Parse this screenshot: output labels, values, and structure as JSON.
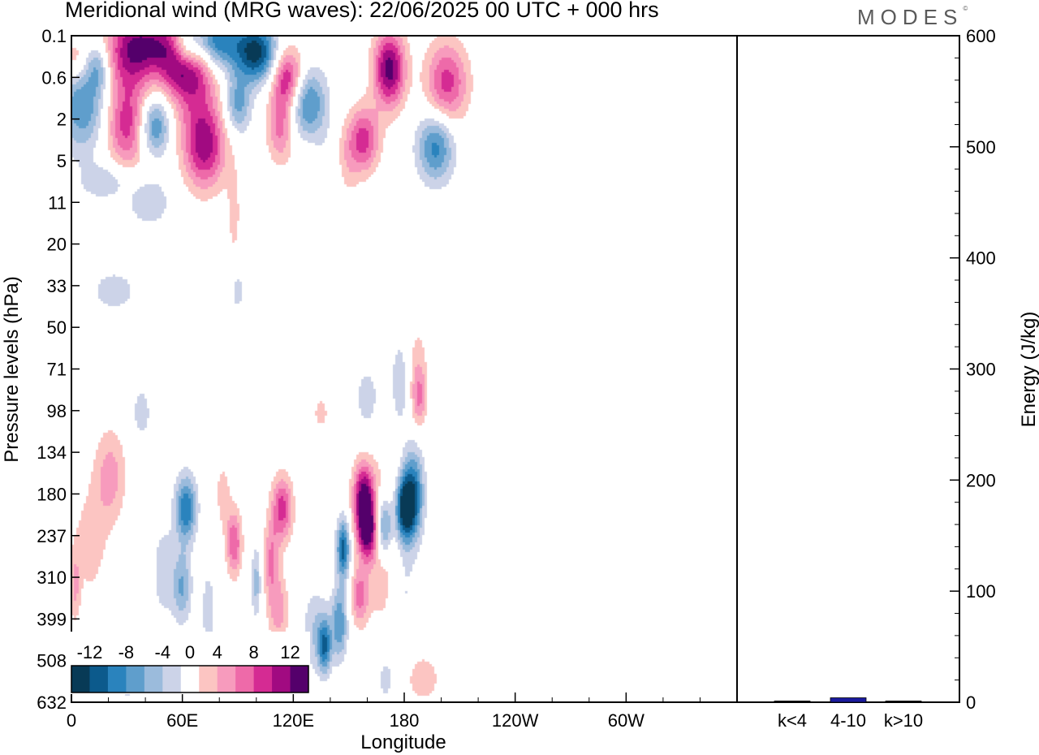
{
  "title": "Meridional wind (MRG waves):  22/06/2025  00 UTC  + 000 hrs",
  "logo": "MODES",
  "chart_data": [
    {
      "type": "heatmap",
      "title": "Meridional wind (MRG waves):  22/06/2025  00 UTC  + 000 hrs",
      "xlabel": "Longitude",
      "ylabel": "Pressure levels (hPa)",
      "x_ticks": [
        "0",
        "60E",
        "120E",
        "180",
        "120W",
        "60W"
      ],
      "y_ticks": [
        "0.1",
        "0.6",
        "2",
        "5",
        "11",
        "20",
        "33",
        "50",
        "71",
        "98",
        "134",
        "180",
        "237",
        "310",
        "399",
        "508",
        "632"
      ],
      "colorbar": {
        "labels": [
          "-12",
          "-8",
          "-4",
          "0",
          "4",
          "8",
          "12"
        ],
        "bins": [
          -14,
          -12,
          -10,
          -8,
          -6,
          -4,
          -2,
          2,
          4,
          6,
          8,
          10,
          12,
          14
        ],
        "colors": [
          "#083a56",
          "#0c5a8c",
          "#2a83bd",
          "#5f9ecc",
          "#9bbbdc",
          "#ccd3e8",
          "#ffffff",
          "#fcc5c2",
          "#f79bbd",
          "#ee6aa9",
          "#d52b93",
          "#a10a81",
          "#54006b"
        ]
      },
      "features": [
        {
          "lon": 172,
          "lev": 0.5,
          "value": 13,
          "slon": 6,
          "slev": 0.65
        },
        {
          "lon": 158,
          "lev": 3.5,
          "value": 9,
          "slon": 6,
          "slev": 0.55
        },
        {
          "lon": 148,
          "lev": 6,
          "value": 4,
          "slon": 5,
          "slev": 0.7
        },
        {
          "lon": 128,
          "lev": 11,
          "value": 2.6,
          "slon": 6,
          "slev": 1.2
        },
        {
          "lon": 197,
          "lev": 4,
          "value": -9,
          "slon": 7,
          "slev": 0.6
        },
        {
          "lon": 203,
          "lev": 0.8,
          "value": 9,
          "slon": 8,
          "slev": 0.7
        },
        {
          "lon": 128,
          "lev": 1.5,
          "value": -9,
          "slon": 7,
          "slev": 0.6
        },
        {
          "lon": 100,
          "lev": 0.3,
          "value": -13,
          "slon": 8,
          "slev": 0.5
        },
        {
          "lon": 117,
          "lev": 0.6,
          "value": 10,
          "slon": 6,
          "slev": 0.5
        },
        {
          "lon": 113,
          "lev": 2.5,
          "value": 7,
          "slon": 5,
          "slev": 0.6
        },
        {
          "lon": 90,
          "lev": 1.5,
          "value": -7,
          "slon": 5,
          "slev": 0.5
        },
        {
          "lon": 78,
          "lev": 0.15,
          "value": -12,
          "slon": 9,
          "slev": 0.5
        },
        {
          "lon": 72,
          "lev": 4,
          "value": 11,
          "slon": 8,
          "slev": 0.7
        },
        {
          "lon": 45,
          "lev": 2.5,
          "value": -9,
          "slon": 6,
          "slev": 0.5
        },
        {
          "lon": 50,
          "lev": 0.2,
          "value": 8,
          "slon": 12,
          "slev": 0.45
        },
        {
          "lon": 60,
          "lev": 0.5,
          "value": 7,
          "slon": 8,
          "slev": 0.4
        },
        {
          "lon": 65,
          "lev": 0.5,
          "value": 9,
          "slon": 10,
          "slev": 0.9
        },
        {
          "lon": 62,
          "lev": 0.25,
          "value": -11,
          "slon": 6,
          "slev": 0.45
        },
        {
          "lon": 30,
          "lev": 2.5,
          "value": 9,
          "slon": 8,
          "slev": 0.7
        },
        {
          "lon": 6,
          "lev": 1.5,
          "value": -8,
          "slon": 9,
          "slev": 0.8
        },
        {
          "lon": 2,
          "lev": 0.4,
          "value": 5,
          "slon": 4,
          "slev": 0.4
        },
        {
          "lon": 15,
          "lev": 0.5,
          "value": -5,
          "slon": 4,
          "slev": 0.4
        },
        {
          "lon": 32,
          "lev": 0.3,
          "value": 10,
          "slon": 10,
          "slev": 0.7
        },
        {
          "lon": 18,
          "lev": 8,
          "value": -4,
          "slon": 9,
          "slev": 0.3
        },
        {
          "lon": 42,
          "lev": 11,
          "value": -4,
          "slon": 8,
          "slev": 0.4
        },
        {
          "lon": 23,
          "lev": 35,
          "value": -3,
          "slon": 10,
          "slev": 0.4
        },
        {
          "lon": 88,
          "lev": 14,
          "value": 2.6,
          "slon": 3,
          "slev": 0.9
        },
        {
          "lon": 90,
          "lev": 35,
          "value": -3,
          "slon": 3,
          "slev": 0.4
        },
        {
          "lon": 140,
          "lev": 8,
          "value": -3,
          "slon": 8,
          "slev": 0.8
        },
        {
          "lon": 178,
          "lev": 80,
          "value": -3.5,
          "slon": 4,
          "slev": 0.8
        },
        {
          "lon": 187,
          "lev": 70,
          "value": 3,
          "slon": 4,
          "slev": 0.8
        },
        {
          "lon": 188,
          "lev": 90,
          "value": 5,
          "slon": 3,
          "slev": 0.5
        },
        {
          "lon": 170,
          "lev": 260,
          "value": 5,
          "slon": 6,
          "slev": 1.4
        },
        {
          "lon": 178,
          "lev": 340,
          "value": -3,
          "slon": 6,
          "slev": 1.0
        },
        {
          "lon": 169,
          "lev": 225,
          "value": -11,
          "slon": 3.5,
          "slev": 0.55
        },
        {
          "lon": 180,
          "lev": 200,
          "value": -13,
          "slon": 3.5,
          "slev": 0.55
        },
        {
          "lon": 185,
          "lev": 180,
          "value": -10,
          "slon": 4,
          "slev": 0.75
        },
        {
          "lon": 160,
          "lev": 230,
          "value": 13,
          "slon": 4,
          "slev": 0.5
        },
        {
          "lon": 158,
          "lev": 180,
          "value": 12,
          "slon": 4,
          "slev": 0.55
        },
        {
          "lon": 156,
          "lev": 350,
          "value": 7,
          "slon": 3.5,
          "slev": 0.5
        },
        {
          "lon": 147,
          "lev": 260,
          "value": -11,
          "slon": 2.5,
          "slev": 0.5
        },
        {
          "lon": 145,
          "lev": 410,
          "value": -8,
          "slon": 3,
          "slev": 0.6
        },
        {
          "lon": 137,
          "lev": 470,
          "value": -9,
          "slon": 2.5,
          "slev": 0.45
        },
        {
          "lon": 132,
          "lev": 430,
          "value": -4,
          "slon": 5,
          "slev": 0.7
        },
        {
          "lon": 114,
          "lev": 200,
          "value": 9,
          "slon": 4,
          "slev": 0.55
        },
        {
          "lon": 112,
          "lev": 380,
          "value": 5,
          "slon": 4,
          "slev": 0.6
        },
        {
          "lon": 108,
          "lev": 280,
          "value": 6,
          "slon": 3,
          "slev": 0.65
        },
        {
          "lon": 100,
          "lev": 320,
          "value": -5,
          "slon": 2,
          "slev": 0.6
        },
        {
          "lon": 88,
          "lev": 250,
          "value": 8,
          "slon": 3,
          "slev": 0.55
        },
        {
          "lon": 82,
          "lev": 180,
          "value": 3,
          "slon": 3,
          "slev": 0.6
        },
        {
          "lon": 62,
          "lev": 200,
          "value": -10,
          "slon": 4,
          "slev": 0.55
        },
        {
          "lon": 60,
          "lev": 330,
          "value": -6,
          "slon": 3.5,
          "slev": 0.6
        },
        {
          "lon": 50,
          "lev": 300,
          "value": -3,
          "slon": 5,
          "slev": 0.9
        },
        {
          "lon": 21,
          "lev": 160,
          "value": 5,
          "slon": 6,
          "slev": 0.8
        },
        {
          "lon": 10,
          "lev": 250,
          "value": 3,
          "slon": 7,
          "slev": 1.0
        },
        {
          "lon": 2,
          "lev": 330,
          "value": 4,
          "slon": 2,
          "slev": 0.6
        },
        {
          "lon": 74,
          "lev": 380,
          "value": -3,
          "slon": 3,
          "slev": 0.8
        },
        {
          "lon": 38,
          "lev": 100,
          "value": -3,
          "slon": 4,
          "slev": 0.5
        },
        {
          "lon": 30,
          "lev": 560,
          "value": -3,
          "slon": 3,
          "slev": 0.5
        },
        {
          "lon": 84,
          "lev": 560,
          "value": 3,
          "slon": 3,
          "slev": 0.4
        },
        {
          "lon": 190,
          "lev": 560,
          "value": 3,
          "slon": 8,
          "slev": 0.5
        },
        {
          "lon": 170,
          "lev": 560,
          "value": -3,
          "slon": 4,
          "slev": 0.5
        },
        {
          "lon": 135,
          "lev": 100,
          "value": 2.5,
          "slon": 4,
          "slev": 0.4
        },
        {
          "lon": 160,
          "lev": 90,
          "value": -3,
          "slon": 5,
          "slev": 0.6
        }
      ]
    },
    {
      "type": "bar",
      "categories": [
        "k<4",
        "4-10",
        "k>10"
      ],
      "values": [
        1,
        4,
        0
      ],
      "ylabel": "Energy (J/kg)",
      "ylim": [
        0,
        600
      ],
      "y_ticks": [
        "0",
        "100",
        "200",
        "300",
        "400",
        "500",
        "600"
      ],
      "colors": [
        "#000000",
        "#1a1a9e",
        "#000000"
      ]
    }
  ]
}
